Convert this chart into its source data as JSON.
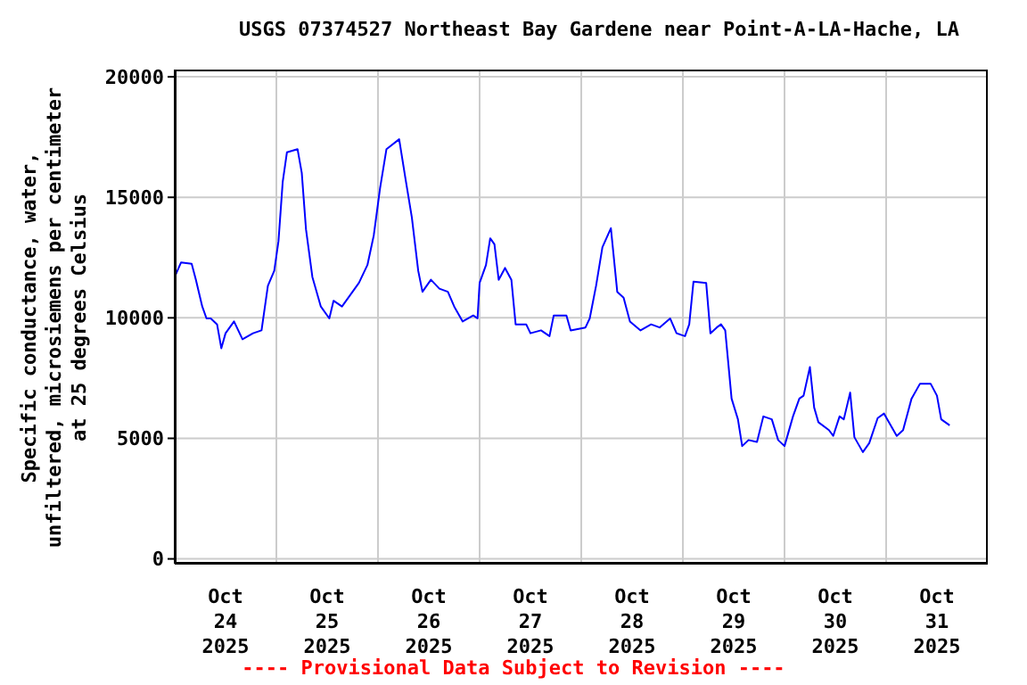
{
  "chart_data": {
    "type": "line",
    "title": "USGS 07374527 Northeast Bay Gardene near Point-A-LA-Hache, LA",
    "ylabel": "Specific conductance, water,\nunfiltered, microsiemens per centimeter\nat 25 degrees Celsius",
    "annotations": [
      "---- Provisional Data Subject to Revision ----"
    ],
    "x": [
      "2025-10-24T00:00",
      "2025-10-24T01:30",
      "2025-10-24T04:00",
      "2025-10-24T05:00",
      "2025-10-24T06:30",
      "2025-10-24T07:30",
      "2025-10-24T08:30",
      "2025-10-24T10:00",
      "2025-10-24T11:00",
      "2025-10-24T12:00",
      "2025-10-24T14:00",
      "2025-10-24T16:00",
      "2025-10-24T18:30",
      "2025-10-24T20:30",
      "2025-10-24T22:00",
      "2025-10-24T23:30",
      "2025-10-25T00:30",
      "2025-10-25T01:30",
      "2025-10-25T02:30",
      "2025-10-25T05:00",
      "2025-10-25T06:00",
      "2025-10-25T07:00",
      "2025-10-25T08:30",
      "2025-10-25T10:30",
      "2025-10-25T12:30",
      "2025-10-25T13:30",
      "2025-10-25T15:30",
      "2025-10-25T17:30",
      "2025-10-25T19:30",
      "2025-10-25T21:30",
      "2025-10-25T23:00",
      "2025-10-26T00:30",
      "2025-10-26T02:00",
      "2025-10-26T05:00",
      "2025-10-26T06:30",
      "2025-10-26T08:00",
      "2025-10-26T09:30",
      "2025-10-26T10:30",
      "2025-10-26T12:30",
      "2025-10-26T14:30",
      "2025-10-26T16:30",
      "2025-10-26T18:00",
      "2025-10-26T20:00",
      "2025-10-26T22:30",
      "2025-10-26T23:30",
      "2025-10-27T00:00",
      "2025-10-27T01:30",
      "2025-10-27T02:30",
      "2025-10-27T03:30",
      "2025-10-27T04:30",
      "2025-10-27T06:00",
      "2025-10-27T07:30",
      "2025-10-27T08:30",
      "2025-10-27T11:00",
      "2025-10-27T12:00",
      "2025-10-27T14:30",
      "2025-10-27T16:30",
      "2025-10-27T17:30",
      "2025-10-27T20:30",
      "2025-10-27T21:30",
      "2025-10-28T01:00",
      "2025-10-28T02:00",
      "2025-10-28T03:30",
      "2025-10-28T05:00",
      "2025-10-28T07:00",
      "2025-10-28T08:30",
      "2025-10-28T10:00",
      "2025-10-28T11:30",
      "2025-10-28T14:00",
      "2025-10-28T16:30",
      "2025-10-28T18:30",
      "2025-10-28T21:00",
      "2025-10-28T22:30",
      "2025-10-29T00:30",
      "2025-10-29T01:30",
      "2025-10-29T02:30",
      "2025-10-29T05:30",
      "2025-10-29T06:30",
      "2025-10-29T08:00",
      "2025-10-29T09:00",
      "2025-10-29T10:00",
      "2025-10-29T11:30",
      "2025-10-29T13:00",
      "2025-10-29T14:00",
      "2025-10-29T15:30",
      "2025-10-29T17:30",
      "2025-10-29T19:00",
      "2025-10-29T21:00",
      "2025-10-29T22:30",
      "2025-10-30T00:00",
      "2025-10-30T02:00",
      "2025-10-30T03:30",
      "2025-10-30T04:30",
      "2025-10-30T06:00",
      "2025-10-30T07:00",
      "2025-10-30T08:00",
      "2025-10-30T10:30",
      "2025-10-30T11:30",
      "2025-10-30T13:00",
      "2025-10-30T14:00",
      "2025-10-30T15:30",
      "2025-10-30T16:30",
      "2025-10-30T18:30",
      "2025-10-30T20:00",
      "2025-10-30T22:00",
      "2025-10-30T23:30",
      "2025-10-31T02:30",
      "2025-10-31T04:00",
      "2025-10-31T06:00",
      "2025-10-31T08:00",
      "2025-10-31T10:30",
      "2025-10-31T12:00",
      "2025-10-31T13:00",
      "2025-10-31T15:00"
    ],
    "series": [
      {
        "color": "#0000ff",
        "values": [
          11700,
          12300,
          12240,
          11580,
          10470,
          9975,
          9975,
          9730,
          8740,
          9360,
          9850,
          9110,
          9360,
          9480,
          11330,
          11950,
          13180,
          15640,
          16870,
          17000,
          16010,
          13670,
          11700,
          10470,
          9975,
          10710,
          10470,
          10960,
          11450,
          12190,
          13420,
          15390,
          17000,
          17410,
          15760,
          14160,
          11950,
          11080,
          11580,
          11210,
          11080,
          10470,
          9850,
          10100,
          9975,
          11450,
          12190,
          13300,
          13050,
          11580,
          12070,
          11580,
          9730,
          9730,
          9360,
          9480,
          9240,
          10100,
          10100,
          9480,
          9600,
          9975,
          11330,
          12930,
          13720,
          11080,
          10840,
          9850,
          9480,
          9730,
          9600,
          9975,
          9360,
          9240,
          9730,
          11500,
          11450,
          9360,
          9600,
          9730,
          9480,
          6650,
          5790,
          4680,
          4930,
          4850,
          5910,
          5790,
          4930,
          4680,
          5910,
          6650,
          6770,
          7960,
          6280,
          5670,
          5340,
          5100,
          5910,
          5790,
          6900,
          5050,
          4430,
          4800,
          5840,
          6030,
          5100,
          5340,
          6650,
          7270,
          7270,
          6770,
          5790,
          5540
        ]
      }
    ],
    "xlim": [
      "2025-10-24",
      "2025-11-01"
    ],
    "xticks": [
      {
        "value": "2025-10-24",
        "label": null
      },
      {
        "value": "2025-10-24T12:00",
        "label": "Oct\n24\n2025"
      },
      {
        "value": "2025-10-25",
        "label": null
      },
      {
        "value": "2025-10-25T12:00",
        "label": "Oct\n25\n2025"
      },
      {
        "value": "2025-10-26",
        "label": null
      },
      {
        "value": "2025-10-26T12:00",
        "label": "Oct\n26\n2025"
      },
      {
        "value": "2025-10-27",
        "label": null
      },
      {
        "value": "2025-10-27T12:00",
        "label": "Oct\n27\n2025"
      },
      {
        "value": "2025-10-28",
        "label": null
      },
      {
        "value": "2025-10-28T12:00",
        "label": "Oct\n28\n2025"
      },
      {
        "value": "2025-10-29",
        "label": null
      },
      {
        "value": "2025-10-29T12:00",
        "label": "Oct\n29\n2025"
      },
      {
        "value": "2025-10-30",
        "label": null
      },
      {
        "value": "2025-10-30T12:00",
        "label": "Oct\n30\n2025"
      },
      {
        "value": "2025-10-31",
        "label": null
      },
      {
        "value": "2025-10-31T12:00",
        "label": "Oct\n31\n2025"
      },
      {
        "value": "2025-11-01",
        "label": null
      }
    ],
    "ylim": [
      -200,
      20300
    ],
    "yticks": [
      0,
      5000,
      10000,
      15000,
      20000
    ],
    "grid": true,
    "marker": "none",
    "line_style": "solid"
  }
}
